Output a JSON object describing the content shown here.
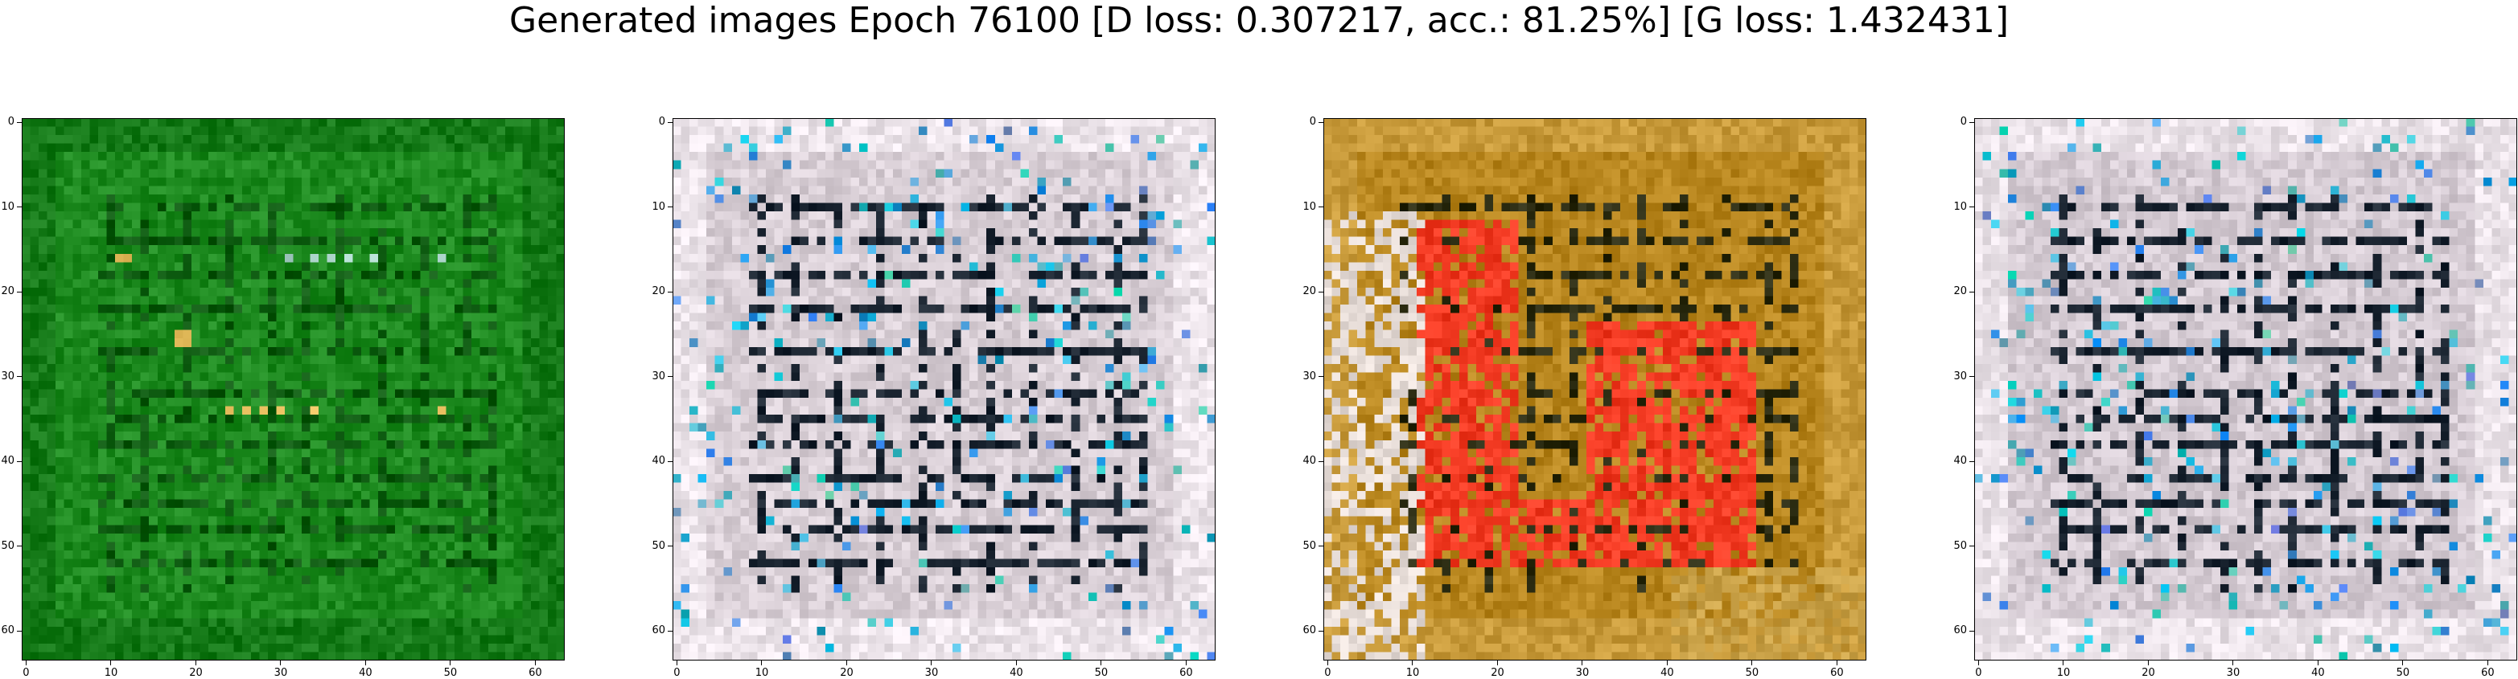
{
  "title": "Generated images Epoch 76100 [D loss: 0.307217, acc.: 81.25%] [G loss: 1.432431]",
  "axis": {
    "ticks": [
      "0",
      "10",
      "20",
      "30",
      "40",
      "50",
      "60"
    ],
    "tick_values": [
      0,
      10,
      20,
      30,
      40,
      50,
      60
    ],
    "range": [
      -0.5,
      63.5
    ]
  },
  "panels": [
    {
      "name": "sample-1",
      "base": "#1d8a1f",
      "border": "#157a18",
      "accent": "#e8c060",
      "grid": "#0d5a10",
      "style": "green"
    },
    {
      "name": "sample-2",
      "base": "#d9cfd6",
      "border": "#ece4ea",
      "accent": "#3a4a5c",
      "grid": "#1a2430",
      "style": "grey"
    },
    {
      "name": "sample-3",
      "base": "#b8861e",
      "border": "#c89a3a",
      "accent": "#f23a22",
      "grid": "#2a2a10",
      "style": "orange"
    },
    {
      "name": "sample-4",
      "base": "#d5cbd3",
      "border": "#eae2e8",
      "accent": "#3a4a5c",
      "grid": "#1a2430",
      "style": "grey"
    }
  ]
}
